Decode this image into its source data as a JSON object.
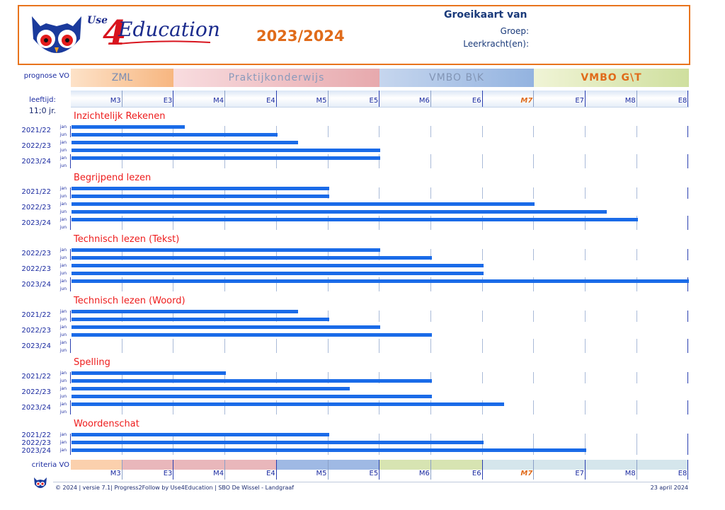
{
  "header": {
    "brand_use": "Use",
    "brand_4": "4",
    "brand_edu": "Education",
    "year": "2023/2024",
    "title": "Groeikaart van",
    "groep": "Groep:",
    "leerkracht": "Leerkracht(en):"
  },
  "labels": {
    "prognose": "prognose VO",
    "leeftijd": "leeftijd:",
    "age": "11;0 jr.",
    "criteria": "criteria VO"
  },
  "prognose_bands": [
    {
      "label": "ZML"
    },
    {
      "label": "Praktijkonderwijs"
    },
    {
      "label": "VMBO B\\K"
    },
    {
      "label": "VMBO G\\T"
    }
  ],
  "scale_labels": [
    "M3",
    "E3",
    "M4",
    "E4",
    "M5",
    "E5",
    "M6",
    "E6",
    "M7",
    "E7",
    "M8",
    "E8"
  ],
  "highlight_label": "M7",
  "colors": {
    "bar": "#1a6be8",
    "section_title": "#ee1c1c",
    "header_border": "#e8741d",
    "year": "#e06b1a"
  },
  "chart_data": {
    "type": "bar",
    "orientation": "horizontal",
    "scale": [
      "M3",
      "E3",
      "M4",
      "E4",
      "M5",
      "E5",
      "M6",
      "E6",
      "M7",
      "E7",
      "M8",
      "E8"
    ],
    "sections": [
      {
        "title": "Inzichtelijk Rekenen",
        "years": [
          "2021/22",
          "2022/23",
          "2023/24"
        ],
        "rows": [
          "jan",
          "jun",
          "jan",
          "jun",
          "jan",
          "jun"
        ],
        "values": [
          2.2,
          4.0,
          4.4,
          6.0,
          6.0,
          null
        ]
      },
      {
        "title": "Begrijpend lezen",
        "years": [
          "2021/22",
          "2022/23",
          "2023/24"
        ],
        "rows": [
          "jan",
          "jun",
          "jan",
          "jun",
          "jan",
          "jun"
        ],
        "values": [
          5.0,
          5.0,
          9.0,
          10.4,
          11.0,
          null
        ]
      },
      {
        "title": "Technisch lezen (Tekst)",
        "years": [
          "2022/23",
          "2022/23",
          "2023/24"
        ],
        "rows": [
          "jan",
          "jun",
          "jan",
          "jun",
          "jan",
          "jun"
        ],
        "values": [
          6.0,
          7.0,
          8.0,
          8.0,
          12.0,
          null
        ]
      },
      {
        "title": "Technisch lezen (Woord)",
        "years": [
          "2021/22",
          "2022/23",
          "2023/24"
        ],
        "rows": [
          "jan",
          "jun",
          "jan",
          "jun",
          "jan",
          "jun"
        ],
        "values": [
          4.4,
          5.0,
          6.0,
          7.0,
          null,
          null
        ]
      },
      {
        "title": "Spelling",
        "years": [
          "2021/22",
          "2022/23",
          "2023/24"
        ],
        "rows": [
          "jan",
          "jun",
          "jan",
          "jun",
          "jan",
          "jun"
        ],
        "values": [
          3.0,
          7.0,
          5.4,
          7.0,
          8.4,
          null
        ]
      },
      {
        "title": "Woordenschat",
        "years": [
          "2021/22",
          "2022/23",
          "2023/24"
        ],
        "rows": [
          "jan",
          "jan",
          "jan"
        ],
        "values": [
          5.0,
          8.0,
          10.0
        ]
      }
    ]
  },
  "footer": {
    "text": "© 2024 | versie 7.1| Progress2Follow by Use4Education    |    SBO De Wissel - Landgraaf",
    "date": "23 april 2024"
  }
}
